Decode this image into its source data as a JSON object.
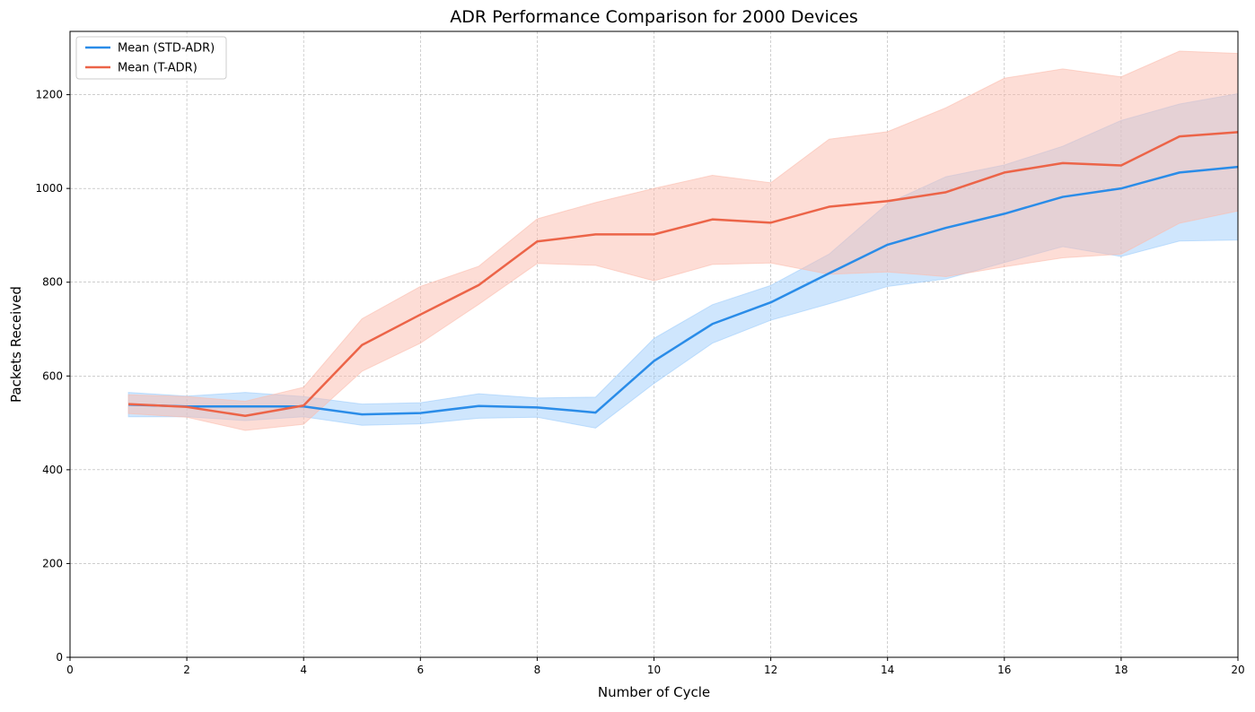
{
  "chart_data": {
    "type": "line",
    "title": "ADR Performance Comparison for 2000 Devices",
    "xlabel": "Number of Cycle",
    "ylabel": "Packets Received",
    "xlim": [
      0,
      20
    ],
    "ylim": [
      0,
      1335
    ],
    "xticks": [
      0,
      2,
      4,
      6,
      8,
      10,
      12,
      14,
      16,
      18,
      20
    ],
    "yticks": [
      0,
      200,
      400,
      600,
      800,
      1000,
      1200
    ],
    "grid": true,
    "legend_position": "top-left",
    "x": [
      1,
      2,
      3,
      4,
      5,
      6,
      7,
      8,
      9,
      10,
      11,
      12,
      13,
      14,
      15,
      16,
      17,
      18,
      19,
      20
    ],
    "series": [
      {
        "name": "Mean (STD-ADR)",
        "color": "#2a8ce8",
        "band_color": "#9fcdfb",
        "values": [
          539,
          535,
          535,
          535,
          518,
          521,
          536,
          533,
          522,
          632,
          711,
          757,
          819,
          880,
          916,
          946,
          982,
          1000,
          1034,
          1046
        ],
        "upper": [
          565,
          557,
          565,
          556,
          540,
          543,
          562,
          553,
          555,
          680,
          752,
          793,
          860,
          968,
          1025,
          1050,
          1090,
          1145,
          1180,
          1202
        ],
        "lower": [
          513,
          513,
          505,
          513,
          495,
          498,
          510,
          512,
          489,
          584,
          670,
          719,
          754,
          791,
          807,
          842,
          876,
          855,
          888,
          890
        ]
      },
      {
        "name": "Mean (T-ADR)",
        "color": "#ec6448",
        "band_color": "#fbbcad",
        "values": [
          540,
          534,
          515,
          537,
          666,
          731,
          794,
          887,
          902,
          902,
          934,
          927,
          961,
          973,
          992,
          1034,
          1054,
          1049,
          1111,
          1120
        ],
        "upper": [
          560,
          556,
          546,
          576,
          722,
          791,
          834,
          935,
          970,
          1000,
          1028,
          1012,
          1105,
          1121,
          1172,
          1235,
          1255,
          1238,
          1293,
          1288
        ],
        "lower": [
          520,
          512,
          484,
          497,
          610,
          670,
          753,
          840,
          836,
          803,
          838,
          841,
          817,
          822,
          812,
          833,
          852,
          860,
          926,
          952
        ]
      }
    ]
  }
}
